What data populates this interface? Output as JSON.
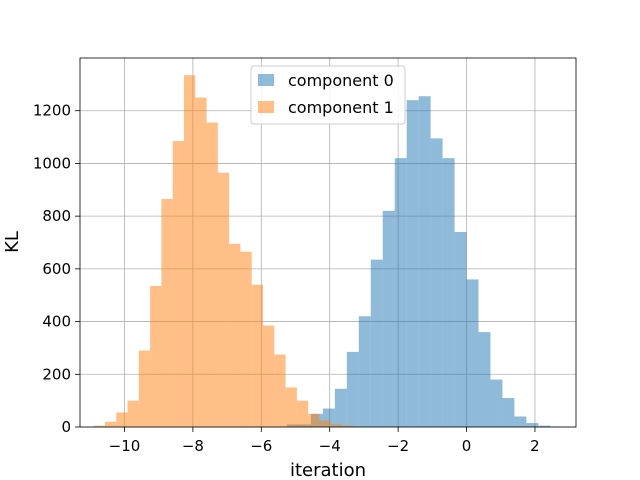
{
  "chart_data": {
    "type": "bar",
    "title": "",
    "xlabel": "iteration",
    "ylabel": "KL",
    "xlim": [
      -11.3,
      3.2
    ],
    "ylim": [
      0,
      1400
    ],
    "xticks": [
      -10,
      -8,
      -6,
      -4,
      -2,
      0,
      2
    ],
    "xtick_labels": [
      "−10",
      "−8",
      "−6",
      "−4",
      "−2",
      "0",
      "2"
    ],
    "yticks": [
      0,
      200,
      400,
      600,
      800,
      1000,
      1200
    ],
    "ytick_labels": [
      "0",
      "200",
      "400",
      "600",
      "800",
      "1000",
      "1200"
    ],
    "grid": true,
    "legend_position": "upper center",
    "series": [
      {
        "name": "component 0",
        "color": "#1f77b4",
        "alpha": 0.5,
        "bin_start": -5.25,
        "bin_width": 0.35,
        "counts": [
          10,
          10,
          50,
          70,
          145,
          285,
          420,
          635,
          820,
          1020,
          1240,
          1255,
          1095,
          1020,
          740,
          560,
          360,
          180,
          110,
          40,
          15,
          5,
          2
        ]
      },
      {
        "name": "component 1",
        "color": "#ff7f0e",
        "alpha": 0.5,
        "bin_start": -10.9,
        "bin_width": 0.33,
        "counts": [
          5,
          20,
          55,
          100,
          290,
          535,
          865,
          1085,
          1335,
          1250,
          1155,
          965,
          695,
          665,
          540,
          385,
          275,
          150,
          100,
          50,
          25,
          10,
          5
        ]
      }
    ]
  }
}
